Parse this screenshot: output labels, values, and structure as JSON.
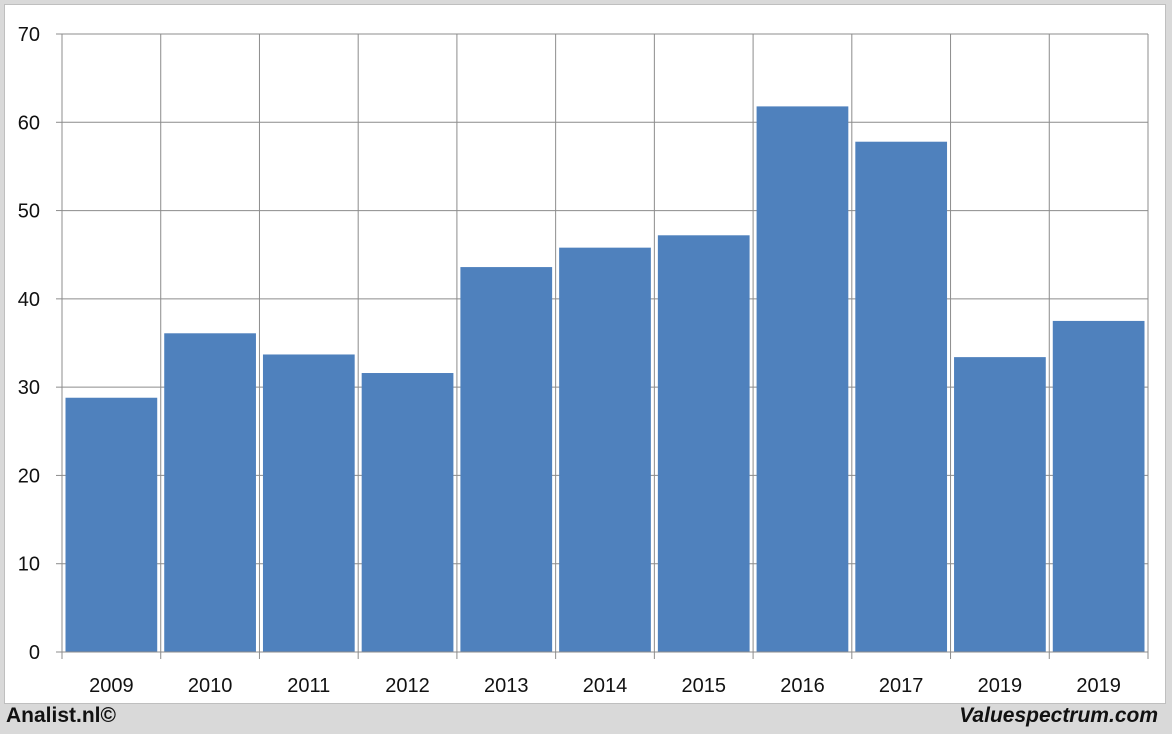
{
  "chart_data": {
    "type": "bar",
    "categories": [
      "2009",
      "2010",
      "2011",
      "2012",
      "2013",
      "2014",
      "2015",
      "2016",
      "2017",
      "2019",
      "2019"
    ],
    "values": [
      28.8,
      36.1,
      33.7,
      31.6,
      43.6,
      45.8,
      47.2,
      61.8,
      57.8,
      33.4,
      37.5
    ],
    "title": "",
    "xlabel": "",
    "ylabel": "",
    "ylim": [
      0,
      70
    ],
    "yticks": [
      0,
      10,
      20,
      30,
      40,
      50,
      60,
      70
    ],
    "grid": true,
    "bar_color": "#4f81bd",
    "grid_color": "#8c8c8c"
  },
  "footer": {
    "left": "Analist.nl©",
    "right": "Valuespectrum.com"
  }
}
